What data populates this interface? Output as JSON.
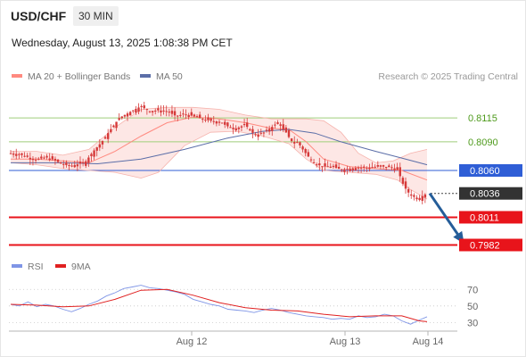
{
  "header": {
    "symbol": "USD/CHF",
    "interval": "30 MIN"
  },
  "datetime": "Wednesday, August 13, 2025 1:08:38 PM CET",
  "legend": {
    "ma20_label": "MA 20 + Bollinger Bands",
    "ma50_label": "MA 50",
    "copyright": "Research © 2025 Trading Central"
  },
  "rsi_legend": {
    "rsi_label": "RSI",
    "ma9_label": "9MA"
  },
  "colors": {
    "ma20": "#ff8a80",
    "bollinger_fill": "#fde3e1",
    "ma50": "#5b6ea8",
    "candle": "#d63a3a",
    "green_level": "#9fce7a",
    "green_text": "#4e9a1c",
    "blue_level": "#2f5ed6",
    "red_level": "#e8141b",
    "last_price": "#333333",
    "rsi": "#7f95e6",
    "rsi_ma": "#e02020",
    "arrow": "#255d99"
  },
  "chart_data": [
    {
      "type": "candlestick",
      "title": "USD/CHF",
      "interval": "30 MIN",
      "x_tick_labels": [
        "Aug 12",
        "Aug 13",
        "Aug 14"
      ],
      "ylim": [
        0.7975,
        0.8145
      ],
      "levels": [
        {
          "value": 0.8115,
          "label": "0.8115",
          "kind": "resistance-green"
        },
        {
          "value": 0.809,
          "label": "0.8090",
          "kind": "resistance-green"
        },
        {
          "value": 0.806,
          "label": "0.8060",
          "kind": "pivot-blue"
        },
        {
          "value": 0.8036,
          "label": "0.8036",
          "kind": "last-price"
        },
        {
          "value": 0.8011,
          "label": "0.8011",
          "kind": "support-red"
        },
        {
          "value": 0.7982,
          "label": "0.7982",
          "kind": "support-red"
        }
      ],
      "price_path": [
        [
          0,
          0.8078
        ],
        [
          10,
          0.8077
        ],
        [
          20,
          0.8074
        ],
        [
          30,
          0.8071
        ],
        [
          40,
          0.8074
        ],
        [
          50,
          0.8071
        ],
        [
          60,
          0.8066
        ],
        [
          70,
          0.8065
        ],
        [
          85,
          0.8068
        ],
        [
          95,
          0.808
        ],
        [
          105,
          0.809
        ],
        [
          115,
          0.8103
        ],
        [
          125,
          0.8115
        ],
        [
          135,
          0.812
        ],
        [
          145,
          0.8125
        ],
        [
          150,
          0.8127
        ],
        [
          160,
          0.8122
        ],
        [
          170,
          0.8123
        ],
        [
          180,
          0.8122
        ],
        [
          190,
          0.8117
        ],
        [
          200,
          0.8119
        ],
        [
          210,
          0.8117
        ],
        [
          220,
          0.8114
        ],
        [
          230,
          0.8112
        ],
        [
          240,
          0.8111
        ],
        [
          250,
          0.8106
        ],
        [
          260,
          0.8104
        ],
        [
          270,
          0.8108
        ],
        [
          276,
          0.8101
        ],
        [
          282,
          0.8097
        ],
        [
          290,
          0.8099
        ],
        [
          300,
          0.8105
        ],
        [
          308,
          0.8111
        ],
        [
          312,
          0.8104
        ],
        [
          316,
          0.8101
        ],
        [
          322,
          0.8092
        ],
        [
          326,
          0.8088
        ],
        [
          330,
          0.809
        ],
        [
          336,
          0.8082
        ],
        [
          342,
          0.8075
        ],
        [
          350,
          0.8067
        ],
        [
          360,
          0.8064
        ],
        [
          370,
          0.8064
        ],
        [
          380,
          0.8061
        ],
        [
          390,
          0.8062
        ],
        [
          400,
          0.8063
        ],
        [
          410,
          0.8063
        ],
        [
          420,
          0.8064
        ],
        [
          430,
          0.8064
        ],
        [
          440,
          0.8063
        ],
        [
          446,
          0.806
        ],
        [
          450,
          0.8048
        ],
        [
          455,
          0.804
        ],
        [
          460,
          0.8034
        ],
        [
          465,
          0.8032
        ],
        [
          470,
          0.8031
        ],
        [
          475,
          0.8034
        ],
        [
          479,
          0.8036
        ]
      ],
      "ma20_path": [
        [
          0,
          0.8072
        ],
        [
          30,
          0.8072
        ],
        [
          60,
          0.807
        ],
        [
          90,
          0.8068
        ],
        [
          120,
          0.808
        ],
        [
          150,
          0.8096
        ],
        [
          180,
          0.811
        ],
        [
          210,
          0.8116
        ],
        [
          240,
          0.8114
        ],
        [
          270,
          0.811
        ],
        [
          300,
          0.8104
        ],
        [
          320,
          0.8103
        ],
        [
          340,
          0.809
        ],
        [
          360,
          0.8072
        ],
        [
          390,
          0.8064
        ],
        [
          420,
          0.8062
        ],
        [
          450,
          0.806
        ],
        [
          479,
          0.805
        ]
      ],
      "bollinger_upper_path": [
        [
          0,
          0.808
        ],
        [
          30,
          0.808
        ],
        [
          60,
          0.8076
        ],
        [
          90,
          0.8082
        ],
        [
          120,
          0.8105
        ],
        [
          150,
          0.8124
        ],
        [
          180,
          0.8126
        ],
        [
          210,
          0.8126
        ],
        [
          240,
          0.8124
        ],
        [
          270,
          0.8118
        ],
        [
          300,
          0.8114
        ],
        [
          320,
          0.8114
        ],
        [
          340,
          0.8114
        ],
        [
          360,
          0.8112
        ],
        [
          380,
          0.81
        ],
        [
          400,
          0.8078
        ],
        [
          420,
          0.8068
        ],
        [
          440,
          0.807
        ],
        [
          460,
          0.8078
        ],
        [
          479,
          0.8082
        ]
      ],
      "bollinger_lower_path": [
        [
          0,
          0.8068
        ],
        [
          30,
          0.8066
        ],
        [
          60,
          0.8062
        ],
        [
          90,
          0.806
        ],
        [
          120,
          0.8058
        ],
        [
          150,
          0.8052
        ],
        [
          170,
          0.8058
        ],
        [
          200,
          0.8086
        ],
        [
          230,
          0.81
        ],
        [
          260,
          0.8101
        ],
        [
          290,
          0.8096
        ],
        [
          320,
          0.8088
        ],
        [
          340,
          0.8072
        ],
        [
          360,
          0.806
        ],
        [
          390,
          0.8058
        ],
        [
          420,
          0.8056
        ],
        [
          445,
          0.805
        ],
        [
          460,
          0.804
        ],
        [
          479,
          0.803
        ]
      ],
      "ma50_path": [
        [
          0,
          0.8068
        ],
        [
          60,
          0.8068
        ],
        [
          100,
          0.8067
        ],
        [
          150,
          0.8072
        ],
        [
          200,
          0.8082
        ],
        [
          250,
          0.8094
        ],
        [
          290,
          0.8101
        ],
        [
          320,
          0.8103
        ],
        [
          350,
          0.8099
        ],
        [
          380,
          0.809
        ],
        [
          420,
          0.808
        ],
        [
          450,
          0.8073
        ],
        [
          479,
          0.8066
        ]
      ],
      "projection": {
        "from": [
          479,
          0.8036
        ],
        "to": [
          500,
          0.7985
        ]
      }
    },
    {
      "type": "line",
      "title": "RSI",
      "series_names": [
        "RSI",
        "9MA"
      ],
      "ylim": [
        25,
        80
      ],
      "y_tick_labels": [
        "70",
        "50",
        "30"
      ],
      "y_ticks": [
        70,
        50,
        30
      ],
      "rsi_path": [
        [
          0,
          52
        ],
        [
          10,
          50
        ],
        [
          20,
          55
        ],
        [
          30,
          49
        ],
        [
          40,
          52
        ],
        [
          50,
          50
        ],
        [
          60,
          46
        ],
        [
          70,
          43
        ],
        [
          80,
          47
        ],
        [
          90,
          52
        ],
        [
          100,
          56
        ],
        [
          110,
          62
        ],
        [
          120,
          66
        ],
        [
          130,
          71
        ],
        [
          140,
          73
        ],
        [
          150,
          75
        ],
        [
          160,
          72
        ],
        [
          170,
          71
        ],
        [
          180,
          69
        ],
        [
          190,
          67
        ],
        [
          200,
          64
        ],
        [
          210,
          58
        ],
        [
          220,
          55
        ],
        [
          230,
          52
        ],
        [
          240,
          50
        ],
        [
          250,
          46
        ],
        [
          260,
          45
        ],
        [
          270,
          44
        ],
        [
          280,
          42
        ],
        [
          290,
          45
        ],
        [
          300,
          47
        ],
        [
          310,
          45
        ],
        [
          320,
          42
        ],
        [
          330,
          40
        ],
        [
          340,
          38
        ],
        [
          350,
          37
        ],
        [
          360,
          36
        ],
        [
          370,
          34
        ],
        [
          380,
          35
        ],
        [
          390,
          34
        ],
        [
          400,
          38
        ],
        [
          410,
          36
        ],
        [
          420,
          37
        ],
        [
          430,
          40
        ],
        [
          440,
          38
        ],
        [
          450,
          32
        ],
        [
          460,
          28
        ],
        [
          470,
          33
        ],
        [
          479,
          37
        ]
      ],
      "rsi_ma_path": [
        [
          0,
          52
        ],
        [
          30,
          51
        ],
        [
          60,
          49
        ],
        [
          90,
          50
        ],
        [
          120,
          58
        ],
        [
          150,
          69
        ],
        [
          180,
          70
        ],
        [
          210,
          63
        ],
        [
          240,
          54
        ],
        [
          270,
          48
        ],
        [
          300,
          45
        ],
        [
          330,
          44
        ],
        [
          360,
          40
        ],
        [
          390,
          37
        ],
        [
          420,
          38
        ],
        [
          450,
          38
        ],
        [
          470,
          32
        ],
        [
          479,
          31
        ]
      ]
    }
  ]
}
